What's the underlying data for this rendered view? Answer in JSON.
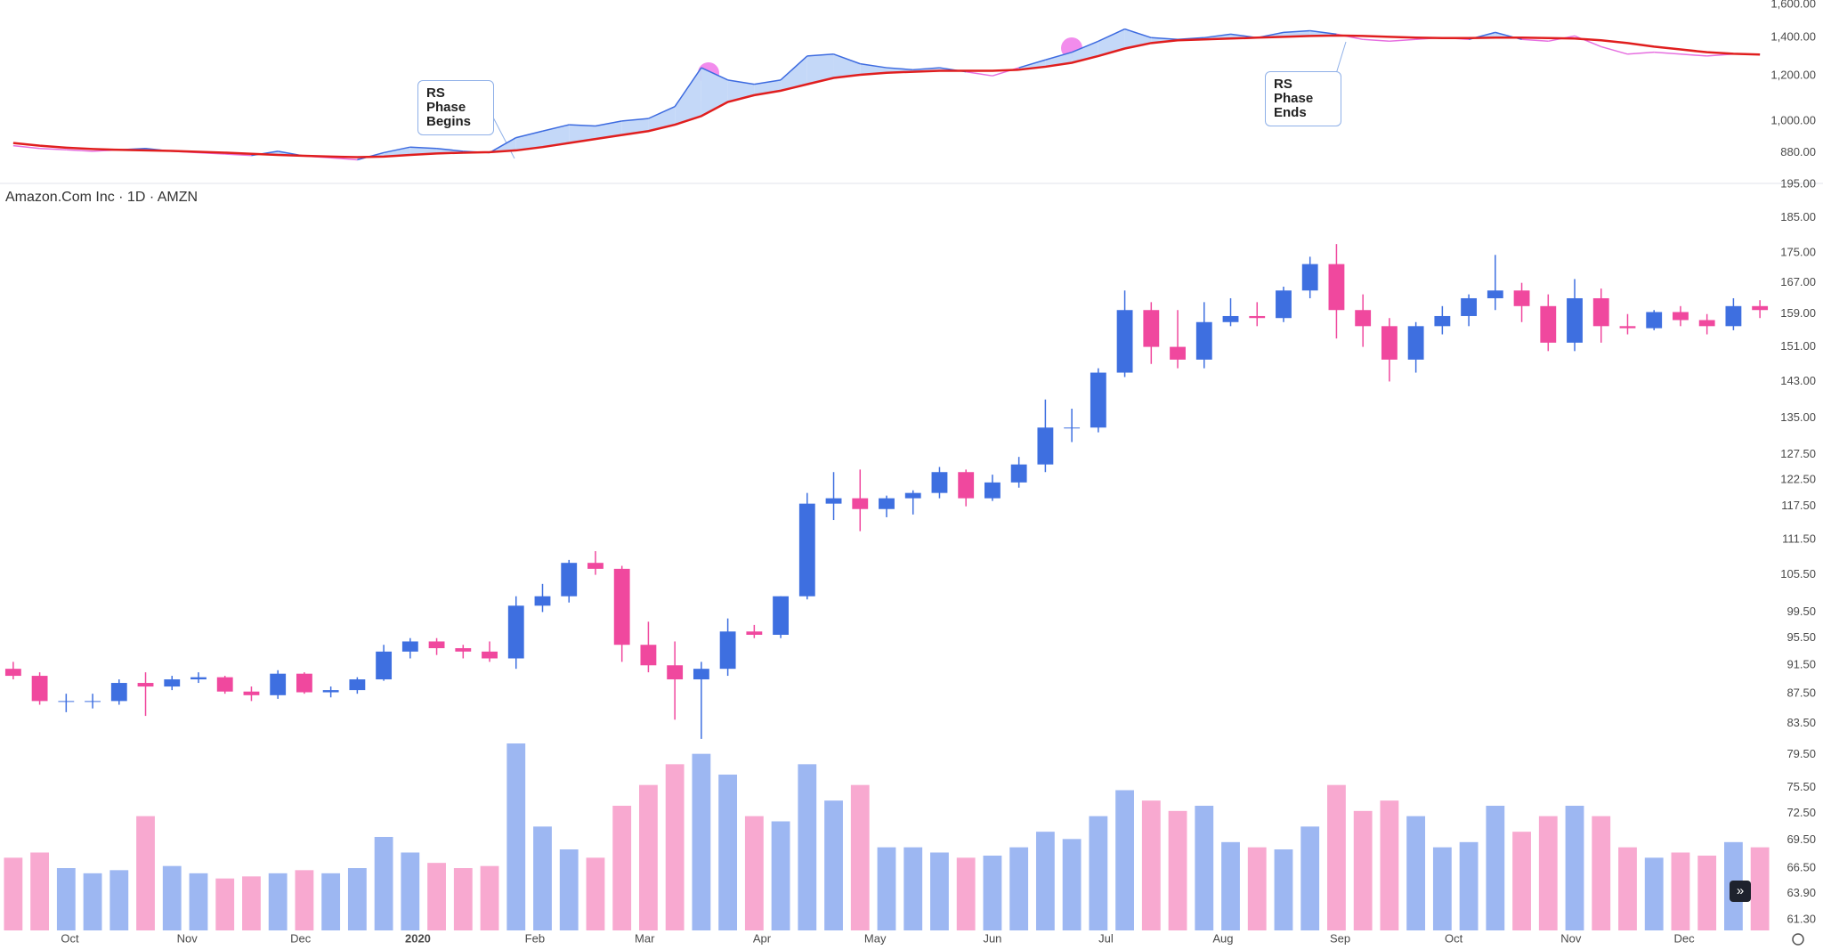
{
  "chart_data": [
    {
      "type": "line",
      "log_scale": true,
      "ylim": [
        780,
        1630
      ],
      "yticks": [
        {
          "value": 1600,
          "label": "1,600.00"
        },
        {
          "value": 1400,
          "label": "1,400.00"
        },
        {
          "value": 1200,
          "label": "1,200.00"
        },
        {
          "value": 1000,
          "label": "1,000.00"
        },
        {
          "value": 880,
          "label": "880.00"
        }
      ],
      "xlim": [
        -0.5,
        66.5
      ],
      "series": [
        {
          "color": "#3d6be0",
          "below_color": "#e66fe0",
          "fill": "#c4d8f8",
          "values": [
            905,
            895,
            890,
            885,
            890,
            895,
            885,
            880,
            875,
            870,
            885,
            868,
            862,
            855,
            880,
            900,
            895,
            885,
            880,
            935,
            960,
            985,
            980,
            1000,
            1010,
            1060,
            1240,
            1180,
            1160,
            1180,
            1300,
            1310,
            1260,
            1240,
            1230,
            1240,
            1220,
            1200,
            1240,
            1280,
            1320,
            1380,
            1450,
            1400,
            1390,
            1400,
            1420,
            1400,
            1430,
            1440,
            1420,
            1390,
            1380,
            1390,
            1400,
            1390,
            1430,
            1390,
            1380,
            1410,
            1350,
            1310,
            1320,
            1310,
            1300,
            1310,
            1310
          ]
        },
        {
          "color": "#e01e1e",
          "values": [
            915,
            905,
            898,
            893,
            890,
            888,
            886,
            883,
            880,
            876,
            872,
            869,
            866,
            864,
            866,
            872,
            877,
            880,
            882,
            888,
            900,
            915,
            930,
            945,
            960,
            985,
            1020,
            1080,
            1110,
            1130,
            1160,
            1190,
            1205,
            1215,
            1220,
            1225,
            1225,
            1225,
            1230,
            1245,
            1265,
            1300,
            1340,
            1370,
            1385,
            1390,
            1395,
            1400,
            1405,
            1410,
            1412,
            1410,
            1405,
            1400,
            1398,
            1398,
            1400,
            1400,
            1398,
            1395,
            1385,
            1370,
            1350,
            1335,
            1320,
            1312,
            1308
          ]
        }
      ],
      "annotations": [
        "RS Phase Begins",
        "RS Phase Ends"
      ]
    },
    {
      "type": "candlestick",
      "title": "Amazon.Com Inc · 1D · AMZN",
      "log_scale": true,
      "ylim": [
        60.3,
        195
      ],
      "yticks": [
        {
          "value": 195,
          "label": "195.00"
        },
        {
          "value": 185,
          "label": "185.00"
        },
        {
          "value": 175,
          "label": "175.00"
        },
        {
          "value": 167,
          "label": "167.00"
        },
        {
          "value": 159,
          "label": "159.00"
        },
        {
          "value": 151,
          "label": "151.00"
        },
        {
          "value": 143,
          "label": "143.00"
        },
        {
          "value": 135,
          "label": "135.00"
        },
        {
          "value": 127.5,
          "label": "127.50"
        },
        {
          "value": 122.5,
          "label": "122.50"
        },
        {
          "value": 117.5,
          "label": "117.50"
        },
        {
          "value": 111.5,
          "label": "111.50"
        },
        {
          "value": 105.5,
          "label": "105.50"
        },
        {
          "value": 99.5,
          "label": "99.50"
        },
        {
          "value": 95.5,
          "label": "95.50"
        },
        {
          "value": 91.5,
          "label": "91.50"
        },
        {
          "value": 87.5,
          "label": "87.50"
        },
        {
          "value": 83.5,
          "label": "83.50"
        },
        {
          "value": 79.5,
          "label": "79.50"
        },
        {
          "value": 75.5,
          "label": "75.50"
        },
        {
          "value": 72.5,
          "label": "72.50"
        },
        {
          "value": 69.5,
          "label": "69.50"
        },
        {
          "value": 66.5,
          "label": "66.50"
        },
        {
          "value": 63.9,
          "label": "63.90"
        },
        {
          "value": 61.3,
          "label": "61.30"
        }
      ],
      "xlim": [
        -0.5,
        66.5
      ],
      "xticks": [
        {
          "value": 2.14,
          "label": "Oct"
        },
        {
          "value": 6.57,
          "label": "Nov"
        },
        {
          "value": 10.86,
          "label": "Dec"
        },
        {
          "value": 15.29,
          "label": "2020"
        },
        {
          "value": 19.71,
          "label": "Feb"
        },
        {
          "value": 23.86,
          "label": "Mar"
        },
        {
          "value": 28.29,
          "label": "Apr"
        },
        {
          "value": 32.57,
          "label": "May"
        },
        {
          "value": 37,
          "label": "Jun"
        },
        {
          "value": 41.29,
          "label": "Jul"
        },
        {
          "value": 45.71,
          "label": "Aug"
        },
        {
          "value": 50.14,
          "label": "Sep"
        },
        {
          "value": 54.43,
          "label": "Oct"
        },
        {
          "value": 58.86,
          "label": "Nov"
        },
        {
          "value": 63.14,
          "label": "Dec"
        }
      ],
      "open": [
        91,
        90,
        86.5,
        86.5,
        86.5,
        89,
        88.5,
        89.5,
        89.8,
        87.8,
        87.3,
        90.3,
        87.7,
        88,
        89.5,
        93.5,
        95,
        94,
        93.5,
        92.5,
        100.5,
        102,
        107.5,
        106.5,
        94.5,
        91.5,
        89.5,
        91,
        96.5,
        96,
        102,
        118,
        119,
        117,
        119,
        120,
        124,
        119,
        122,
        125.5,
        133,
        133,
        145,
        160,
        151,
        148,
        157,
        158.5,
        158,
        165,
        172,
        160,
        156,
        148,
        156,
        158.5,
        163,
        165,
        161,
        152,
        163,
        156,
        155.5,
        159.5,
        157.5,
        156,
        161
      ],
      "high": [
        92,
        90.5,
        87.5,
        87.5,
        89.5,
        90.5,
        90,
        90.5,
        90,
        88.5,
        90.8,
        90.5,
        88.5,
        89.8,
        94.5,
        95.5,
        95.5,
        94.5,
        95,
        102,
        104,
        108,
        109.5,
        107,
        98,
        95,
        92,
        98.5,
        97.5,
        102,
        120,
        124,
        124.5,
        119.5,
        120.5,
        125,
        124.5,
        123.5,
        127,
        139,
        137,
        146,
        165,
        162,
        160,
        162,
        163,
        162,
        166,
        174,
        177.5,
        164,
        158,
        157,
        161,
        164,
        174.5,
        167,
        164,
        168,
        165.5,
        159,
        160,
        161,
        159,
        163,
        162.5
      ],
      "low": [
        89.5,
        86,
        85,
        85.5,
        86,
        84.5,
        88,
        89,
        87.5,
        86.5,
        86.8,
        87.5,
        87,
        87.5,
        89.3,
        92.5,
        93,
        92.5,
        92,
        91,
        99.5,
        101,
        105.5,
        92,
        90.5,
        84,
        81.5,
        90,
        95.5,
        95.5,
        101.5,
        115,
        113,
        115.5,
        116,
        119,
        117.5,
        118.5,
        121,
        124,
        130,
        132,
        144,
        147,
        146,
        146,
        156,
        156,
        157,
        163,
        153,
        151,
        143,
        145,
        154,
        156,
        160,
        157,
        150,
        150,
        152,
        154,
        155,
        156,
        154,
        155,
        158
      ],
      "close": [
        90,
        86.5,
        86.5,
        86.5,
        89,
        88.5,
        89.5,
        89.8,
        87.8,
        87.3,
        90.3,
        87.7,
        88,
        89.5,
        93.5,
        95,
        94,
        93.5,
        92.5,
        100.5,
        102,
        107.5,
        106.5,
        94.5,
        91.5,
        89.5,
        91,
        96.5,
        96,
        102,
        118,
        119,
        117,
        119,
        120,
        124,
        119,
        122,
        125.5,
        133,
        133,
        145,
        160,
        151,
        148,
        157,
        158.5,
        158,
        165,
        172,
        160,
        156,
        148,
        156,
        158.5,
        163,
        165,
        161,
        152,
        163,
        156,
        155.5,
        159.5,
        157.5,
        156,
        161,
        160
      ],
      "volume": [
        70,
        75,
        60,
        55,
        58,
        110,
        62,
        55,
        50,
        52,
        55,
        58,
        55,
        60,
        90,
        75,
        65,
        60,
        62,
        180,
        100,
        78,
        70,
        120,
        140,
        160,
        170,
        150,
        110,
        105,
        160,
        125,
        140,
        80,
        80,
        75,
        70,
        72,
        80,
        95,
        88,
        110,
        135,
        125,
        115,
        120,
        85,
        80,
        78,
        100,
        140,
        115,
        125,
        110,
        80,
        85,
        120,
        95,
        110,
        120,
        110,
        80,
        70,
        75,
        72,
        85,
        80
      ],
      "up_color": "#3e6fe0",
      "down_color": "#f0489e",
      "volume_up_color": "#9db7f2",
      "volume_down_color": "#f8a9d0"
    }
  ]
}
